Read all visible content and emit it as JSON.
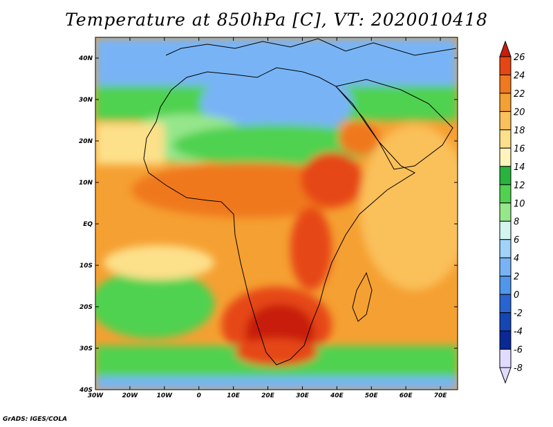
{
  "title": "Temperature at 850hPa [C], VT: 2020010418",
  "credit": "GrADS: IGES/COLA",
  "map": {
    "lon_range": [
      -30,
      75
    ],
    "lat_range": [
      -40,
      45
    ],
    "lon_ticks": [
      {
        "value": -30,
        "label": "30W"
      },
      {
        "value": -20,
        "label": "20W"
      },
      {
        "value": -10,
        "label": "10W"
      },
      {
        "value": 0,
        "label": "0"
      },
      {
        "value": 10,
        "label": "10E"
      },
      {
        "value": 20,
        "label": "20E"
      },
      {
        "value": 30,
        "label": "30E"
      },
      {
        "value": 40,
        "label": "40E"
      },
      {
        "value": 50,
        "label": "50E"
      },
      {
        "value": 60,
        "label": "60E"
      },
      {
        "value": 70,
        "label": "70E"
      }
    ],
    "lat_ticks": [
      {
        "value": 40,
        "label": "40N"
      },
      {
        "value": 30,
        "label": "30N"
      },
      {
        "value": 20,
        "label": "20N"
      },
      {
        "value": 10,
        "label": "10N"
      },
      {
        "value": 0,
        "label": "EQ"
      },
      {
        "value": -10,
        "label": "10S"
      },
      {
        "value": -20,
        "label": "20S"
      },
      {
        "value": -30,
        "label": "30S"
      },
      {
        "value": -40,
        "label": "40S"
      }
    ]
  },
  "colorbar": {
    "labels": [
      "26",
      "24",
      "22",
      "20",
      "18",
      "16",
      "14",
      "12",
      "10",
      "8",
      "6",
      "4",
      "2",
      "0",
      "-2",
      "-4",
      "-6",
      "-8"
    ],
    "colors": [
      "#c81e0a",
      "#e64614",
      "#f0781e",
      "#f5a032",
      "#fac05a",
      "#fde08a",
      "#fff5bc",
      "#28b43c",
      "#50d250",
      "#96e68c",
      "#d2f5f0",
      "#a0d2fa",
      "#78b4f5",
      "#5096eb",
      "#2864d2",
      "#1446b4",
      "#0a2896",
      "#e1dcff"
    ]
  }
}
